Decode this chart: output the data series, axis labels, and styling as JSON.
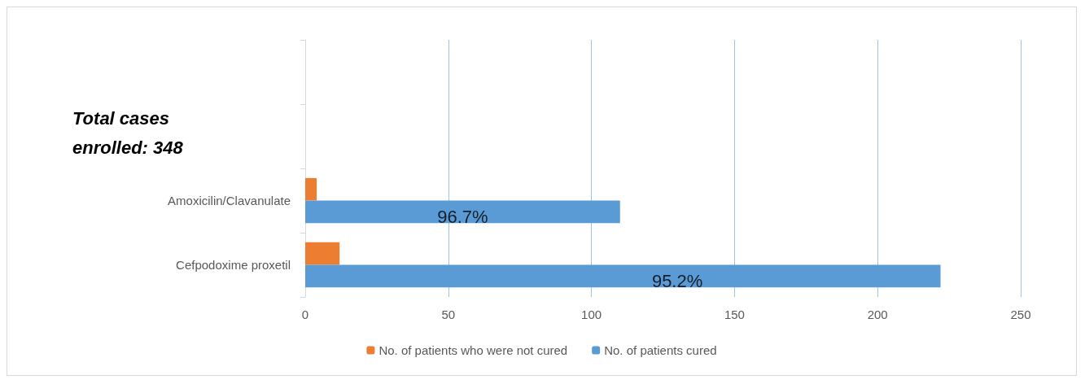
{
  "chart_data": {
    "type": "bar",
    "orientation": "horizontal",
    "categories": [
      null,
      null,
      "Amoxicilin/Clavanulate",
      "Cefpodoxime proxetil"
    ],
    "series": [
      {
        "name": "No. of patients who were not cured",
        "color": "#ed7d31",
        "values": [
          null,
          null,
          4,
          12
        ]
      },
      {
        "name": "No. of patients cured",
        "color": "#5b9bd5",
        "values": [
          null,
          null,
          110,
          222
        ]
      }
    ],
    "xlim": [
      0,
      250
    ],
    "xticks": [
      0,
      50,
      100,
      150,
      200,
      250
    ],
    "grid": "x",
    "legend": "bottom",
    "annotations": [
      "Total cases enrolled: 348",
      {
        "text": "96.7%",
        "x": 55,
        "y": "Amoxicilin/Clavanulate"
      },
      {
        "text": "95.2%",
        "x": 130,
        "y": "Cefpodoxime proxetil"
      }
    ]
  }
}
